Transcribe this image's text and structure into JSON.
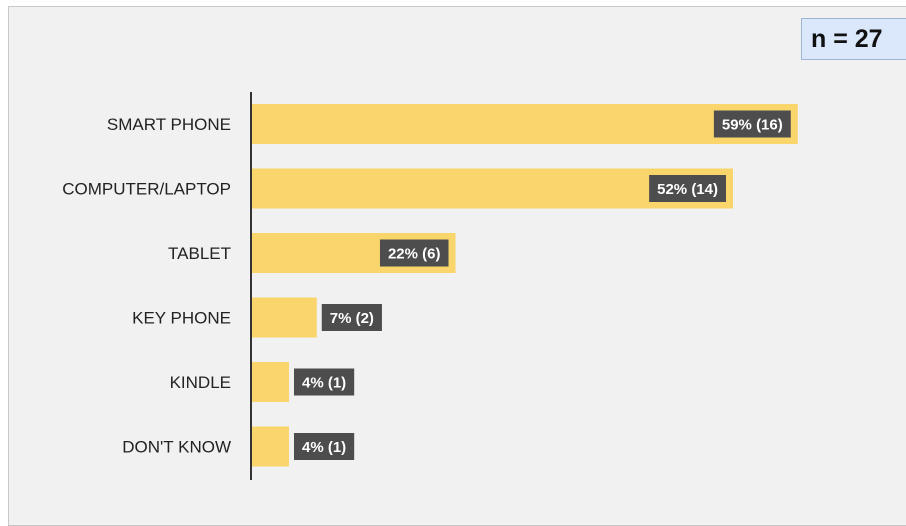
{
  "sample_badge": {
    "text": "n = 27"
  },
  "colors": {
    "bar": "#f9d56c",
    "value_label_bg": "#4d4d4d",
    "value_label_text": "#ffffff",
    "axis": "#333333",
    "background": "#f1f1f1"
  },
  "chart_data": {
    "type": "bar",
    "orientation": "horizontal",
    "categories": [
      "SMART PHONE",
      "COMPUTER/LAPTOP",
      "TABLET",
      "KEY PHONE",
      "KINDLE",
      "DON'T KNOW"
    ],
    "values": [
      59,
      52,
      22,
      7,
      4,
      4
    ],
    "counts": [
      16,
      14,
      6,
      2,
      1,
      1
    ],
    "data_labels": [
      "59% (16)",
      "52% (14)",
      "22% (6)",
      "7% (2)",
      "4% (1)",
      "4% (1)"
    ],
    "value_unit": "%",
    "xlim": [
      0,
      100
    ],
    "grid": false,
    "legend": false
  }
}
